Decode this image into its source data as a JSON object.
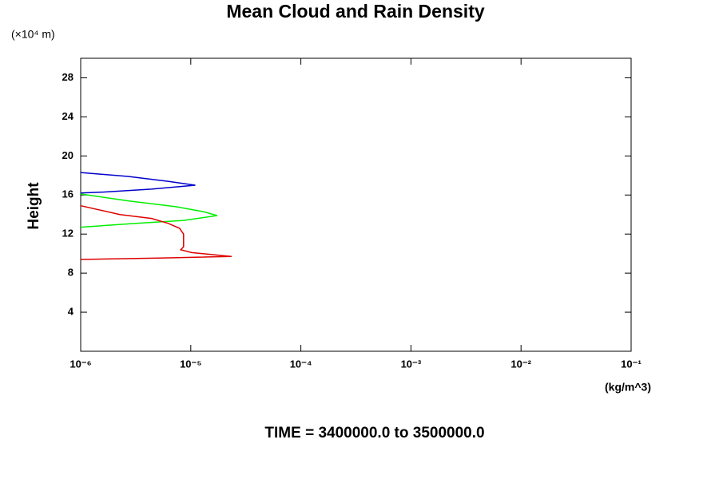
{
  "chart_data": {
    "type": "line",
    "title": "Mean Cloud and Rain Density",
    "y_unit": "(×10⁴ m)",
    "ylabel": "Height",
    "x_unit": "(kg/m^3)",
    "subtitle": "TIME = 3400000.0 to 3500000.0",
    "xscale": "log",
    "xlim": [
      1e-06,
      0.1
    ],
    "xticks": [
      {
        "value": 1e-06,
        "label": "10⁻⁶"
      },
      {
        "value": 1e-05,
        "label": "10⁻⁵"
      },
      {
        "value": 0.0001,
        "label": "10⁻⁴"
      },
      {
        "value": 0.001,
        "label": "10⁻³"
      },
      {
        "value": 0.01,
        "label": "10⁻²"
      },
      {
        "value": 0.1,
        "label": "10⁻¹"
      }
    ],
    "ylim": [
      0,
      30
    ],
    "yticks": [
      4,
      8,
      12,
      16,
      20,
      24,
      28
    ],
    "series": [
      {
        "color": "#0000cc",
        "x": [
          1e-06,
          2.7e-06,
          6.2e-06,
          1.1e-05,
          4.4e-06,
          1.6e-06,
          1e-06
        ],
        "values": [
          18.3,
          17.9,
          17.4,
          17.0,
          16.6,
          16.3,
          16.2
        ]
      },
      {
        "color": "#00ee00",
        "x": [
          1e-06,
          2.7e-06,
          7.3e-06,
          1.3e-05,
          1.74e-05,
          8.6e-06,
          3.2e-06,
          1e-06
        ],
        "values": [
          16.1,
          15.4,
          14.8,
          14.3,
          13.9,
          13.4,
          13.1,
          12.7
        ]
      },
      {
        "color": "#dd0000",
        "x": [
          1e-06,
          2.27e-06,
          4.4e-06,
          6.2e-06,
          7.9e-06,
          8.6e-06,
          8.6e-06,
          8.1e-06,
          1.02e-05,
          2.35e-05,
          5.2e-06,
          1e-06
        ],
        "values": [
          14.9,
          14.0,
          13.6,
          13.1,
          12.6,
          12.0,
          10.7,
          10.4,
          10.1,
          9.7,
          9.55,
          9.4
        ]
      }
    ]
  }
}
